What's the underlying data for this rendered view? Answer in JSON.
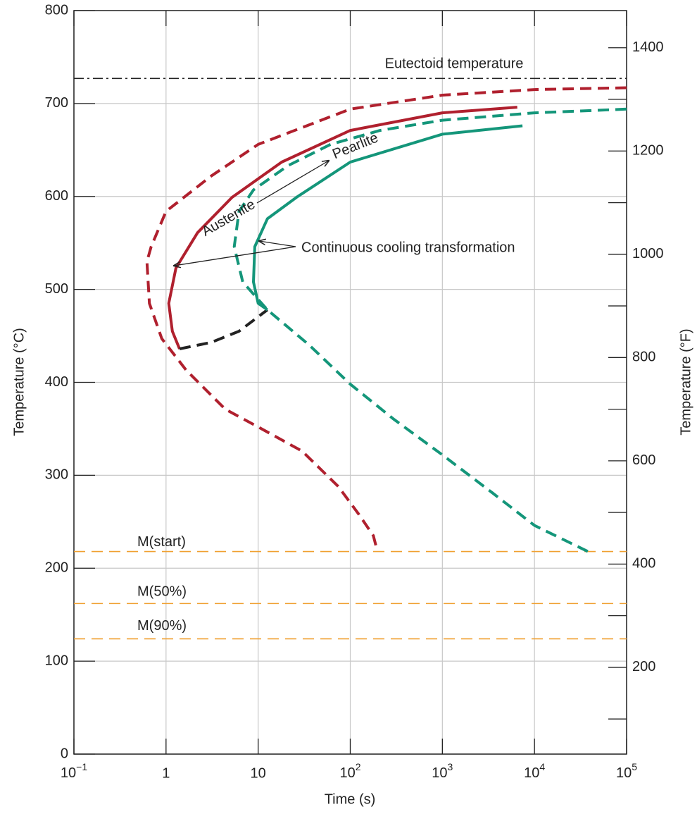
{
  "chart_data": {
    "type": "line",
    "xlabel": "Time (s)",
    "ylabel": "Temperature (°C)",
    "y2label": "Temperature (°F)",
    "xscale": "log",
    "xlim": [
      0.1,
      100000
    ],
    "xticks": [
      {
        "value": 0.1,
        "label": "10",
        "sup": "−1"
      },
      1,
      10,
      {
        "value": 100,
        "label": "10",
        "sup": "2"
      },
      {
        "value": 1000,
        "label": "10",
        "sup": "3"
      },
      {
        "value": 10000,
        "label": "10",
        "sup": "4"
      },
      {
        "value": 100000,
        "label": "10",
        "sup": "5"
      }
    ],
    "ylim": [
      0,
      800
    ],
    "yticks": [
      0,
      100,
      200,
      300,
      400,
      500,
      600,
      700,
      800
    ],
    "y2lim": [
      32,
      1472
    ],
    "y2ticks": [
      200,
      400,
      600,
      800,
      1000,
      1200,
      1400
    ],
    "y2minor_ticks": [
      100,
      300,
      500,
      700,
      900,
      1100,
      1300
    ],
    "grid": true,
    "series": [
      {
        "color": "#b0202e",
        "style": "dashed",
        "x": [
          100000,
          10000,
          1000,
          100,
          10,
          3.1,
          1,
          0.69,
          0.62,
          0.66,
          0.9,
          1.66,
          4.4,
          10,
          30,
          74,
          124,
          178,
          195
        ],
        "values": [
          717,
          715,
          709,
          694,
          656,
          622,
          584,
          546,
          530,
          485,
          447,
          413,
          371,
          352,
          326,
          288,
          258,
          235,
          220
        ]
      },
      {
        "color": "#b0202e",
        "style": "solid",
        "x": [
          6500,
          1000,
          100,
          18,
          5.2,
          2.2,
          1.28,
          1.07,
          1.17,
          1.4
        ],
        "values": [
          696,
          690,
          671,
          637,
          599,
          561,
          523,
          485,
          455,
          436
        ]
      },
      {
        "color": "#222222",
        "style": "dashed",
        "x": [
          1.4,
          3.1,
          6.2,
          12.6
        ],
        "values": [
          436,
          443,
          455,
          478
        ]
      },
      {
        "color": "#14967a",
        "style": "dashed",
        "x": [
          100000,
          10000,
          1000,
          210,
          61,
          21,
          8.9,
          6.2,
          5.5,
          6.8,
          12.6,
          36,
          100,
          300,
          1000,
          3500,
          10000,
          38000
        ],
        "values": [
          694,
          690,
          682,
          671,
          656,
          633,
          607,
          584,
          546,
          508,
          478,
          440,
          398,
          360,
          322,
          281,
          246,
          218
        ]
      },
      {
        "color": "#14967a",
        "style": "solid",
        "x": [
          7400,
          1000,
          100,
          26,
          12.6,
          9.2,
          8.9,
          10,
          12.6
        ],
        "values": [
          676,
          667,
          637,
          599,
          576,
          546,
          508,
          485,
          478
        ]
      }
    ],
    "hlines": [
      {
        "label": "Eutectoid temperature",
        "value": 727,
        "color": "#222222",
        "style": "dashdot"
      },
      {
        "label": "M(start)",
        "value": 218,
        "color": "#f0a030",
        "style": "dashed"
      },
      {
        "label": "M(50%)",
        "value": 162,
        "color": "#f0a030",
        "style": "dashed"
      },
      {
        "label": "M(90%)",
        "value": 124,
        "color": "#f0a030",
        "style": "dashed"
      }
    ],
    "annotations": [
      "Austenite",
      "Pearlite",
      "Continuous cooling transformation"
    ]
  }
}
